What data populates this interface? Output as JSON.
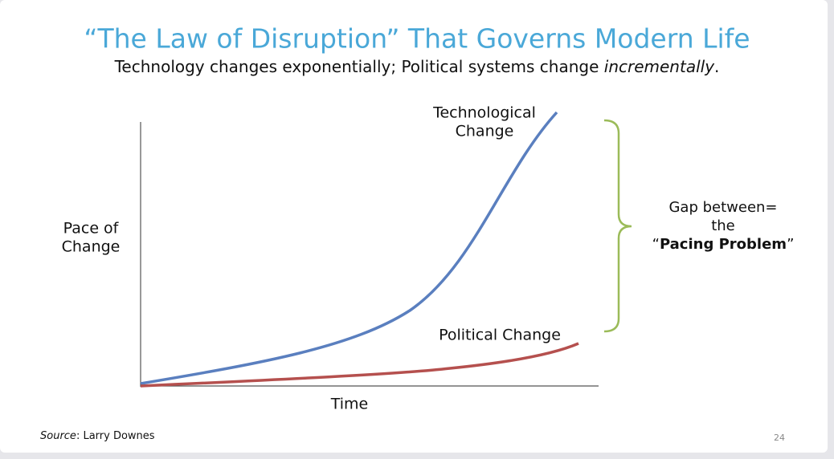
{
  "header": {
    "title": "“The Law of Disruption” That Governs Modern Life",
    "subtitle": "Technology changes exponentially; Political systems change ",
    "subtitle_emphasis": "incrementally",
    "subtitle_end": "."
  },
  "diagram": {
    "y_axis_label": [
      "Pace of",
      "Change"
    ],
    "x_axis_label": "Time",
    "tech_label": [
      "Technological",
      "Change"
    ],
    "political_label": "Political Change",
    "gap_label": [
      "Gap between=",
      "the"
    ],
    "gap_open_quote": "“",
    "gap_emphasis": "Pacing Problem",
    "gap_close_quote": "”"
  },
  "footer": {
    "source_label": "Source",
    "source_text": ": Larry Downes",
    "page_number": "24"
  }
}
